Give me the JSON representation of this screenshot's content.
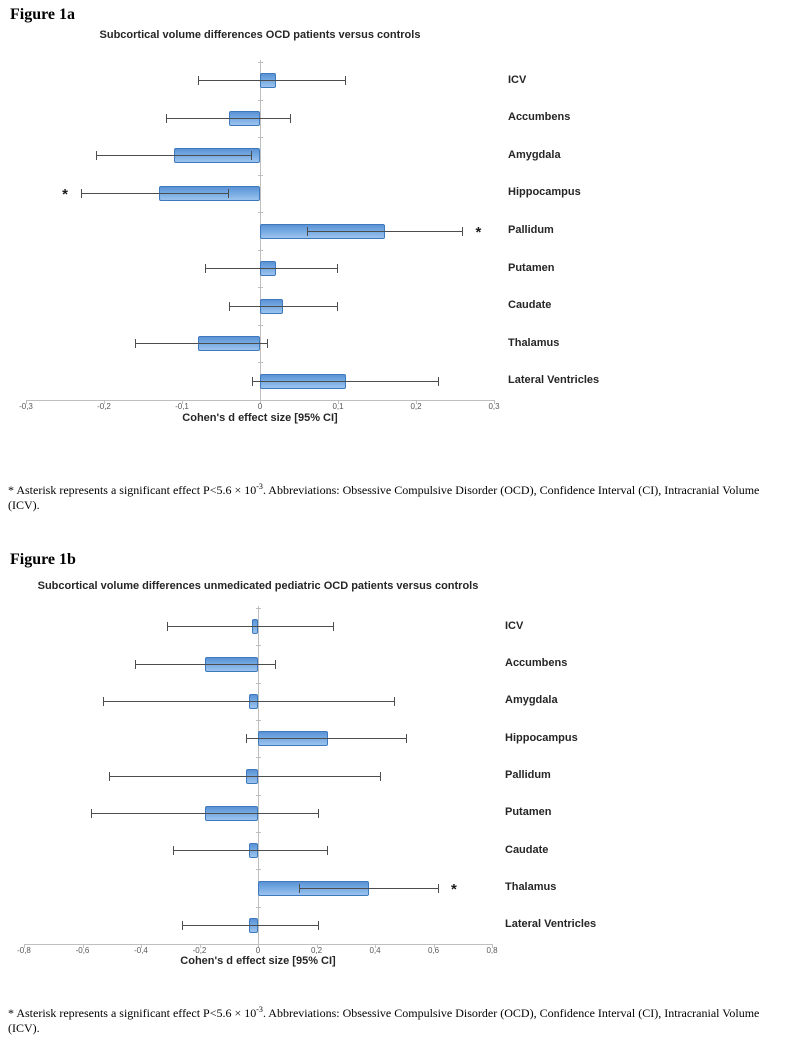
{
  "figure_a": {
    "heading": "Figure 1a"
  },
  "figure_b": {
    "heading": "Figure 1b"
  },
  "caption": {
    "prefix": "* Asterisk represents a significant effect P<5.6 × 10",
    "sup": "-3",
    "suffix": ". Abbreviations: Obsessive Compulsive Disorder (OCD), Confidence Interval (CI), Intracranial Volume (ICV)."
  },
  "colors": {
    "bar_fill_top": "#5b92d5",
    "bar_fill_bottom": "#9cc3ee",
    "bar_border": "#3e79bd",
    "error_bar": "#4d4d4d",
    "axis_line": "#bfbfbf",
    "text_dark": "#262626",
    "tick_text": "#595959"
  },
  "chart_data": [
    {
      "id": "chart-1a",
      "type": "bar",
      "orientation": "horizontal",
      "title": "Subcortical volume differences OCD patients versus controls",
      "xlabel": "Cohen's d effect size [95% CI]",
      "xlim": [
        -0.3,
        0.3
      ],
      "grid": false,
      "legend": "none",
      "categories": [
        "ICV",
        "Accumbens",
        "Amygdala",
        "Hippocampus",
        "Pallidum",
        "Putamen",
        "Caudate",
        "Thalamus",
        "Lateral Ventricles"
      ],
      "series": [
        {
          "name": "Cohen's d",
          "values": [
            0.02,
            -0.04,
            -0.11,
            -0.13,
            0.16,
            0.02,
            0.03,
            -0.08,
            0.11
          ]
        }
      ],
      "ci_low": [
        -0.08,
        -0.12,
        -0.21,
        -0.23,
        0.06,
        -0.07,
        -0.04,
        -0.16,
        -0.01
      ],
      "ci_high": [
        0.11,
        0.04,
        -0.01,
        -0.04,
        0.26,
        0.1,
        0.1,
        0.01,
        0.23
      ],
      "significant": [
        false,
        false,
        false,
        true,
        true,
        false,
        false,
        false,
        false
      ],
      "asterisk_at": [
        null,
        null,
        null,
        -0.25,
        0.28,
        null,
        null,
        null,
        null
      ],
      "xticks": [
        {
          "v": -0.3,
          "label": "-0,3"
        },
        {
          "v": -0.2,
          "label": "-0,2"
        },
        {
          "v": -0.1,
          "label": "-0,1"
        },
        {
          "v": 0,
          "label": "0"
        },
        {
          "v": 0.1,
          "label": "0,1"
        },
        {
          "v": 0.2,
          "label": "0,2"
        },
        {
          "v": 0.3,
          "label": "0,3"
        }
      ]
    },
    {
      "id": "chart-1b",
      "type": "bar",
      "orientation": "horizontal",
      "title": "Subcortical volume differences unmedicated pediatric OCD patients versus controls",
      "xlabel": "Cohen's d effect size [95% CI]",
      "xlim": [
        -0.8,
        0.8
      ],
      "grid": false,
      "legend": "none",
      "categories": [
        "ICV",
        "Accumbens",
        "Amygdala",
        "Hippocampus",
        "Pallidum",
        "Putamen",
        "Caudate",
        "Thalamus",
        "Lateral Ventricles"
      ],
      "series": [
        {
          "name": "Cohen's d",
          "values": [
            -0.02,
            -0.18,
            -0.03,
            0.24,
            -0.04,
            -0.18,
            -0.03,
            0.38,
            -0.03
          ]
        }
      ],
      "ci_low": [
        -0.31,
        -0.42,
        -0.53,
        -0.04,
        -0.51,
        -0.57,
        -0.29,
        0.14,
        -0.26
      ],
      "ci_high": [
        0.26,
        0.06,
        0.47,
        0.51,
        0.42,
        0.21,
        0.24,
        0.62,
        0.21
      ],
      "significant": [
        false,
        false,
        false,
        false,
        false,
        false,
        false,
        true,
        false
      ],
      "asterisk_at": [
        null,
        null,
        null,
        null,
        null,
        null,
        null,
        0.67,
        null
      ],
      "xticks": [
        {
          "v": -0.8,
          "label": "-0,8"
        },
        {
          "v": -0.6,
          "label": "-0,6"
        },
        {
          "v": -0.4,
          "label": "-0,4"
        },
        {
          "v": -0.2,
          "label": "-0,2"
        },
        {
          "v": 0,
          "label": "0"
        },
        {
          "v": 0.2,
          "label": "0,2"
        },
        {
          "v": 0.4,
          "label": "0,4"
        },
        {
          "v": 0.6,
          "label": "0,6"
        },
        {
          "v": 0.8,
          "label": "0,8"
        }
      ]
    }
  ]
}
